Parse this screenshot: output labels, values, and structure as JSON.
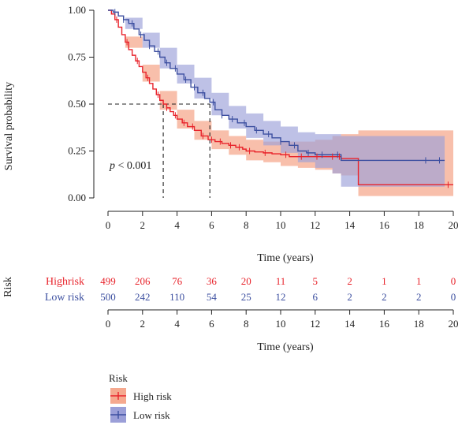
{
  "chart_data": {
    "type": "line",
    "subtype": "kaplan-meier",
    "ylabel": "Survival probability",
    "xlabel": "Time (years)",
    "xlim": [
      0,
      20
    ],
    "ylim": [
      0,
      1
    ],
    "x_ticks": [
      0,
      2,
      4,
      6,
      8,
      10,
      12,
      14,
      16,
      18,
      20
    ],
    "y_ticks": [
      "0.00",
      "0.25",
      "0.50",
      "0.75",
      "1.00"
    ],
    "annotation": {
      "p_italic": "p",
      "p_rest": " < 0.001"
    },
    "median_survival": {
      "y": 0.5,
      "High risk": 3.2,
      "Low risk": 5.9
    },
    "series": [
      {
        "name": "High risk",
        "color": "#e8232b",
        "fill": "#f5a98f",
        "points": [
          [
            0,
            1.0
          ],
          [
            0.2,
            0.98
          ],
          [
            0.4,
            0.95
          ],
          [
            0.6,
            0.91
          ],
          [
            0.8,
            0.87
          ],
          [
            1.0,
            0.83
          ],
          [
            1.2,
            0.79
          ],
          [
            1.4,
            0.76
          ],
          [
            1.6,
            0.73
          ],
          [
            1.8,
            0.7
          ],
          [
            2.0,
            0.67
          ],
          [
            2.2,
            0.64
          ],
          [
            2.4,
            0.61
          ],
          [
            2.6,
            0.58
          ],
          [
            2.8,
            0.55
          ],
          [
            3.0,
            0.52
          ],
          [
            3.2,
            0.5
          ],
          [
            3.4,
            0.48
          ],
          [
            3.6,
            0.46
          ],
          [
            3.8,
            0.44
          ],
          [
            4.0,
            0.42
          ],
          [
            4.3,
            0.4
          ],
          [
            4.6,
            0.38
          ],
          [
            5.0,
            0.36
          ],
          [
            5.4,
            0.33
          ],
          [
            5.8,
            0.31
          ],
          [
            6.2,
            0.3
          ],
          [
            6.6,
            0.29
          ],
          [
            7.0,
            0.28
          ],
          [
            7.4,
            0.27
          ],
          [
            7.8,
            0.26
          ],
          [
            8.0,
            0.25
          ],
          [
            8.5,
            0.245
          ],
          [
            9.0,
            0.24
          ],
          [
            9.5,
            0.235
          ],
          [
            10.0,
            0.23
          ],
          [
            10.5,
            0.22
          ],
          [
            11.0,
            0.22
          ],
          [
            12.0,
            0.22
          ],
          [
            13.0,
            0.22
          ],
          [
            13.5,
            0.21
          ],
          [
            14.4,
            0.21
          ],
          [
            14.5,
            0.07
          ],
          [
            20.0,
            0.07
          ]
        ],
        "ci_upper": [
          [
            0,
            1.0
          ],
          [
            1.0,
            0.86
          ],
          [
            2.0,
            0.71
          ],
          [
            3.0,
            0.57
          ],
          [
            4.0,
            0.47
          ],
          [
            5.0,
            0.41
          ],
          [
            6.0,
            0.36
          ],
          [
            7.0,
            0.33
          ],
          [
            8.0,
            0.31
          ],
          [
            9.0,
            0.3
          ],
          [
            10.0,
            0.3
          ],
          [
            11.0,
            0.3
          ],
          [
            12.0,
            0.31
          ],
          [
            13.0,
            0.33
          ],
          [
            13.5,
            0.34
          ],
          [
            14.5,
            0.36
          ],
          [
            20.0,
            0.36
          ]
        ],
        "ci_lower": [
          [
            0,
            1.0
          ],
          [
            1.0,
            0.8
          ],
          [
            2.0,
            0.62
          ],
          [
            3.0,
            0.47
          ],
          [
            4.0,
            0.37
          ],
          [
            5.0,
            0.31
          ],
          [
            6.0,
            0.26
          ],
          [
            7.0,
            0.23
          ],
          [
            8.0,
            0.2
          ],
          [
            9.0,
            0.19
          ],
          [
            10.0,
            0.17
          ],
          [
            11.0,
            0.16
          ],
          [
            12.0,
            0.15
          ],
          [
            13.0,
            0.13
          ],
          [
            13.5,
            0.12
          ],
          [
            14.5,
            0.01
          ],
          [
            20.0,
            0.01
          ]
        ],
        "censor_x": [
          0.5,
          1.1,
          1.7,
          2.3,
          2.9,
          3.4,
          3.9,
          4.4,
          4.9,
          5.5,
          6.0,
          6.5,
          7.1,
          7.6,
          8.2,
          9.1,
          10.3,
          11.2,
          12.1,
          13.0,
          13.4,
          19.7
        ]
      },
      {
        "name": "Low risk",
        "color": "#3c4fa0",
        "fill": "#9b9fd8",
        "points": [
          [
            0,
            1.0
          ],
          [
            0.3,
            0.99
          ],
          [
            0.6,
            0.97
          ],
          [
            0.9,
            0.95
          ],
          [
            1.2,
            0.93
          ],
          [
            1.5,
            0.9
          ],
          [
            1.8,
            0.87
          ],
          [
            2.1,
            0.84
          ],
          [
            2.4,
            0.81
          ],
          [
            2.7,
            0.78
          ],
          [
            3.0,
            0.75
          ],
          [
            3.3,
            0.72
          ],
          [
            3.6,
            0.69
          ],
          [
            4.0,
            0.66
          ],
          [
            4.4,
            0.63
          ],
          [
            4.8,
            0.59
          ],
          [
            5.2,
            0.56
          ],
          [
            5.6,
            0.53
          ],
          [
            5.9,
            0.51
          ],
          [
            6.2,
            0.47
          ],
          [
            6.6,
            0.44
          ],
          [
            7.0,
            0.42
          ],
          [
            7.5,
            0.4
          ],
          [
            8.0,
            0.38
          ],
          [
            8.5,
            0.36
          ],
          [
            9.0,
            0.34
          ],
          [
            9.5,
            0.32
          ],
          [
            10.0,
            0.3
          ],
          [
            10.5,
            0.28
          ],
          [
            11.0,
            0.25
          ],
          [
            11.5,
            0.24
          ],
          [
            12.0,
            0.23
          ],
          [
            13.0,
            0.23
          ],
          [
            13.5,
            0.2
          ],
          [
            19.5,
            0.2
          ]
        ],
        "ci_upper": [
          [
            0,
            1.0
          ],
          [
            1.0,
            0.96
          ],
          [
            2.0,
            0.88
          ],
          [
            3.0,
            0.8
          ],
          [
            4.0,
            0.71
          ],
          [
            5.0,
            0.64
          ],
          [
            6.0,
            0.56
          ],
          [
            7.0,
            0.49
          ],
          [
            8.0,
            0.45
          ],
          [
            9.0,
            0.41
          ],
          [
            10.0,
            0.38
          ],
          [
            11.0,
            0.35
          ],
          [
            12.0,
            0.34
          ],
          [
            13.0,
            0.34
          ],
          [
            13.5,
            0.33
          ],
          [
            19.5,
            0.34
          ]
        ],
        "ci_lower": [
          [
            0,
            1.0
          ],
          [
            1.0,
            0.9
          ],
          [
            2.0,
            0.8
          ],
          [
            3.0,
            0.69
          ],
          [
            4.0,
            0.61
          ],
          [
            5.0,
            0.53
          ],
          [
            6.0,
            0.44
          ],
          [
            7.0,
            0.37
          ],
          [
            8.0,
            0.32
          ],
          [
            9.0,
            0.28
          ],
          [
            10.0,
            0.24
          ],
          [
            11.0,
            0.19
          ],
          [
            12.0,
            0.16
          ],
          [
            13.0,
            0.13
          ],
          [
            13.5,
            0.06
          ],
          [
            19.5,
            0.06
          ]
        ],
        "censor_x": [
          0.4,
          0.9,
          1.4,
          1.9,
          2.4,
          2.9,
          3.4,
          3.9,
          4.5,
          5.0,
          5.5,
          6.1,
          6.6,
          7.2,
          7.9,
          8.6,
          9.3,
          10.0,
          10.8,
          11.6,
          12.4,
          13.3,
          18.4,
          19.2
        ]
      }
    ]
  },
  "risk_table": {
    "title": "Risk",
    "rows": [
      {
        "label": "Highrisk",
        "color": "#e8232b",
        "counts": [
          "499",
          "206",
          "76",
          "36",
          "20",
          "11",
          "5",
          "2",
          "1",
          "1",
          "0"
        ]
      },
      {
        "label": "Low risk",
        "color": "#3c4fa0",
        "counts": [
          "500",
          "242",
          "110",
          "54",
          "25",
          "12",
          "6",
          "2",
          "2",
          "2",
          "0"
        ]
      }
    ],
    "x_ticks": [
      "0",
      "2",
      "4",
      "6",
      "8",
      "10",
      "12",
      "14",
      "16",
      "18",
      "20"
    ],
    "xlabel": "Time (years)"
  },
  "legend": {
    "title": "Risk",
    "items": [
      {
        "label": "High risk",
        "color": "#e8232b",
        "fill": "#f5a98f"
      },
      {
        "label": "Low risk",
        "color": "#3c4fa0",
        "fill": "#9b9fd8"
      }
    ]
  }
}
